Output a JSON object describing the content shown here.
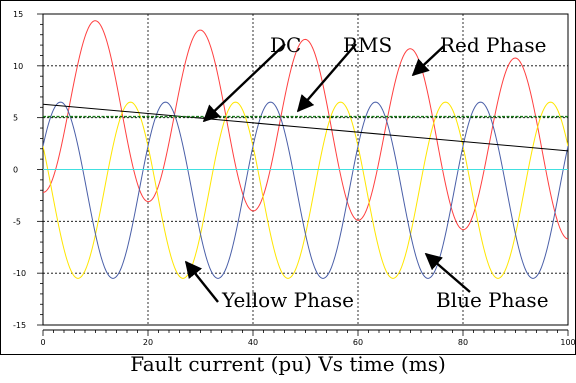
{
  "caption": "Fault current (pu) Vs time (ms)",
  "chart_data": {
    "type": "line",
    "title": "",
    "xlabel": "",
    "ylabel": "",
    "xlim": [
      0,
      100
    ],
    "ylim": [
      -15,
      15
    ],
    "x_ticks": [
      0,
      20,
      40,
      60,
      80,
      100
    ],
    "y_ticks": [
      15,
      10,
      5,
      0,
      -5,
      -10,
      -15
    ],
    "grid": true,
    "series": [
      {
        "name": "Red Phase",
        "color": "#ff4040",
        "amplitude": 8.5,
        "frequency_hz": 50,
        "phase_deg": -90,
        "offset": 0,
        "dc_start": 6.3,
        "dc_end": 1.8
      },
      {
        "name": "Yellow Phase",
        "color": "#ffe600",
        "amplitude": 8.5,
        "frequency_hz": 50,
        "phase_deg": 150,
        "offset": -2.0,
        "dc_start": 0,
        "dc_end": 0
      },
      {
        "name": "Blue Phase",
        "color": "#4a5fa8",
        "amplitude": 8.5,
        "frequency_hz": 50,
        "phase_deg": 30,
        "offset": -2.0,
        "dc_start": 0,
        "dc_end": 0
      },
      {
        "name": "DC",
        "color": "#000000",
        "x": [
          0,
          100
        ],
        "y": [
          6.3,
          1.8
        ]
      },
      {
        "name": "RMS",
        "color": "#1a7a1a",
        "x": [
          0,
          100
        ],
        "y": [
          5.1,
          5.1
        ]
      },
      {
        "name": "",
        "color": "#40e0e0",
        "x": [
          0,
          100
        ],
        "y": [
          0,
          0
        ]
      }
    ],
    "annotations": [
      {
        "text": "DC"
      },
      {
        "text": "RMS"
      },
      {
        "text": "Red Phase"
      },
      {
        "text": "Yellow Phase"
      },
      {
        "text": "Blue Phase"
      }
    ]
  }
}
